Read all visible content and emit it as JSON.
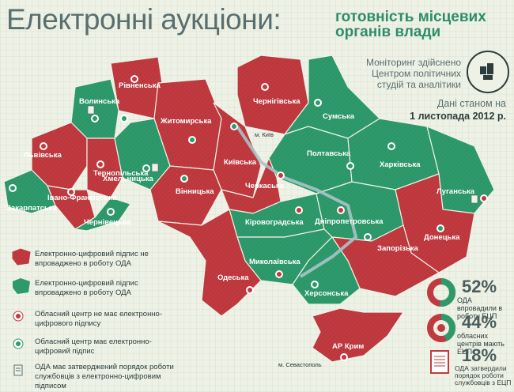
{
  "title": {
    "main": "Електронні аукціони:",
    "sub": "готовність місцевих органів влади"
  },
  "monitoring": "Моніторинг здійснено Центром політичних студій та аналітики",
  "stamp_text": "Центр політичних студій та аналітики",
  "date": {
    "line1": "Дані станом на",
    "line2": "1 листопада 2012 р."
  },
  "colors": {
    "red": "#c03a3f",
    "green": "#2e9a6c",
    "text": "#5a6e6f",
    "background": "#eef2e6"
  },
  "regions": [
    {
      "name": "Рівненська",
      "status": "red"
    },
    {
      "name": "Волинська",
      "status": "green"
    },
    {
      "name": "Чернігівська",
      "status": "red"
    },
    {
      "name": "Сумська",
      "status": "green"
    },
    {
      "name": "Житомирська",
      "status": "red"
    },
    {
      "name": "м. Київ",
      "status": "green"
    },
    {
      "name": "Львівська",
      "status": "red"
    },
    {
      "name": "Тернопільська",
      "status": "red"
    },
    {
      "name": "Хмельницька",
      "status": "green"
    },
    {
      "name": "Київська",
      "status": "red"
    },
    {
      "name": "Полтавська",
      "status": "green"
    },
    {
      "name": "Харківська",
      "status": "green"
    },
    {
      "name": "Вінницька",
      "status": "red"
    },
    {
      "name": "Черкаська",
      "status": "red"
    },
    {
      "name": "Луганська",
      "status": "green"
    },
    {
      "name": "Закарпатська",
      "status": "green"
    },
    {
      "name": "Івано-Франківська",
      "status": "red"
    },
    {
      "name": "Чернівецька",
      "status": "green"
    },
    {
      "name": "Кіровоградська",
      "status": "green"
    },
    {
      "name": "Дніпропетровська",
      "status": "green"
    },
    {
      "name": "Донецька",
      "status": "red"
    },
    {
      "name": "Запорізька",
      "status": "red"
    },
    {
      "name": "Миколаївська",
      "status": "green"
    },
    {
      "name": "Одеська",
      "status": "red"
    },
    {
      "name": "Херсонська",
      "status": "green"
    },
    {
      "name": "АР Крим",
      "status": "red"
    },
    {
      "name": "м. Севастополь",
      "status": "green"
    }
  ],
  "legend": [
    {
      "text": "Електронно-цифровий підпис не впроваджено в роботу ОДА"
    },
    {
      "text": "Електронно-цифровий підпис впроваджено в роботу ОДА"
    },
    {
      "text": "Обласний центр не має електронно-цифрового підпису"
    },
    {
      "text": "Обласний центр має електронно-цифровий підпис"
    },
    {
      "text": "ОДА має затверджений порядок роботи службовців з електронно-цифровим підписом"
    }
  ],
  "stats": [
    {
      "value": "52%",
      "text": "ОДА впровадили в роботу ЕЦП",
      "fraction": 0.52
    },
    {
      "value": "44%",
      "text": "обласних центрів мають ЕЦП",
      "fraction": 0.44
    },
    {
      "value": "18%",
      "text": "ОДА затвердили порядок роботи службовців з ЕЦП",
      "fraction": 0.18
    }
  ]
}
